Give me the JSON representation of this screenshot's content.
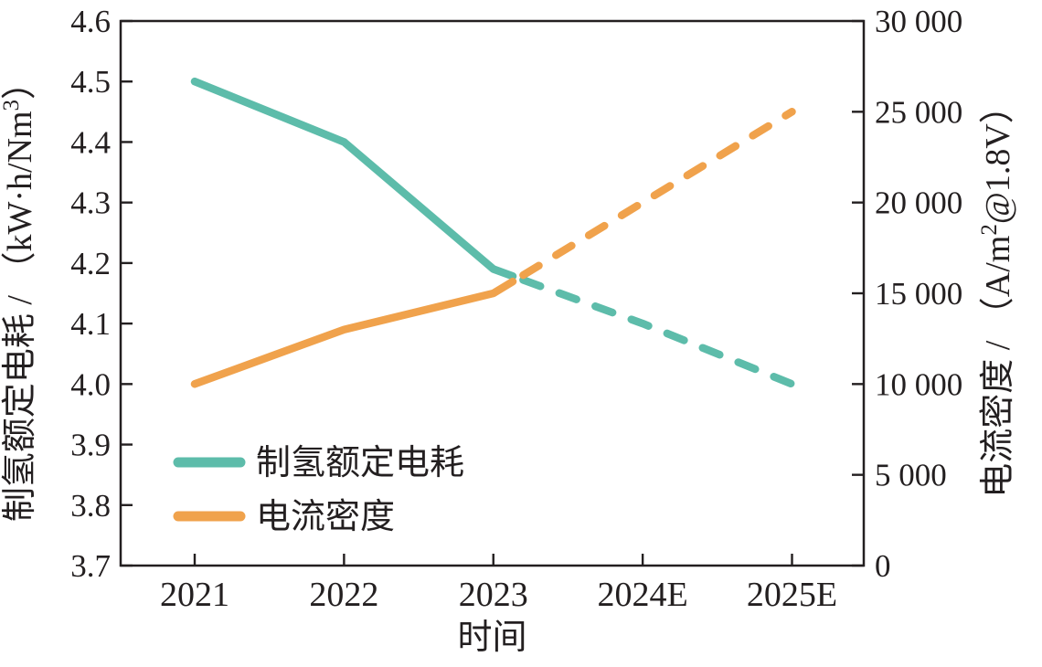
{
  "figure": {
    "background": "#ffffff",
    "text_color": "#231f20"
  },
  "chart_data": {
    "type": "line",
    "title": "",
    "categories": [
      "2021",
      "2022",
      "2023",
      "2024E",
      "2025E"
    ],
    "xlabel": "时间",
    "grid": false,
    "left_axis": {
      "label": "制氢额定电耗 / （kW·h/Nm³）",
      "label_parts": {
        "pre": "制氢额定电耗 / （kW·h/Nm",
        "sup": "3",
        "post": "）"
      },
      "lim": [
        3.7,
        4.6
      ],
      "ticks": [
        4.6,
        4.5,
        4.4,
        4.3,
        4.2,
        4.1,
        4.0,
        3.9,
        3.8,
        3.7
      ],
      "tick_labels": [
        "4.6",
        "4.5",
        "4.4",
        "4.3",
        "4.2",
        "4.1",
        "4.0",
        "3.9",
        "3.8",
        "3.7"
      ]
    },
    "right_axis": {
      "label": "电流密度 / （A/m²@1.8V）",
      "label_parts": {
        "pre": "电流密度 / （A/m",
        "sup": "2",
        "post": "@1.8V）"
      },
      "lim": [
        0,
        30000
      ],
      "ticks": [
        30000,
        25000,
        20000,
        15000,
        10000,
        5000,
        0
      ],
      "tick_labels": [
        "30 000",
        "25 000",
        "20 000",
        "15 000",
        "10 000",
        "5 000",
        "0"
      ]
    },
    "series": [
      {
        "name": "制氢额定电耗",
        "key": "rated-power-consumption",
        "axis": "left",
        "color": "#5dbcaa",
        "values": [
          4.5,
          4.4,
          4.19,
          4.1,
          4.0
        ],
        "linestyle": "solid then dashed",
        "dashed_from_index": 2
      },
      {
        "name": "电流密度",
        "key": "current-density",
        "axis": "right",
        "color": "#f0a24c",
        "values": [
          10000,
          13000,
          15000,
          20000,
          25000
        ],
        "linestyle": "solid then dashed",
        "dashed_from_index": 2
      }
    ],
    "legend": {
      "position": "inside lower-left",
      "entries": [
        "制氢额定电耗",
        "电流密度"
      ]
    }
  }
}
